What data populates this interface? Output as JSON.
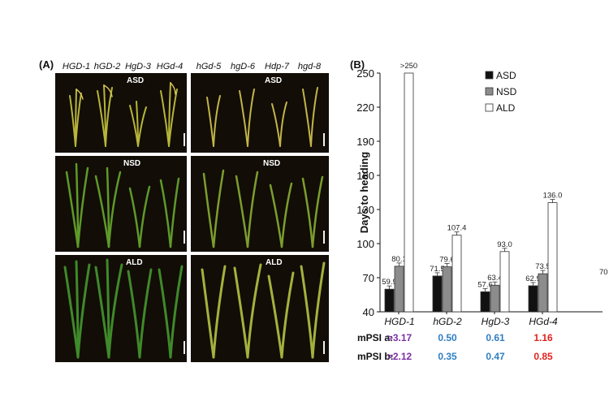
{
  "panel_a": {
    "label": "(A)",
    "genotypes": [
      "HGD-1",
      "hGD-2",
      "HgD-3",
      "HGd-4",
      "hGd-5",
      "hgD-6",
      "Hdp-7",
      "hgd-8"
    ],
    "conditions": [
      "ASD",
      "NSD",
      "ALD"
    ]
  },
  "chart_data": {
    "type": "bar",
    "panel_label": "(B)",
    "ylabel": "Days to heading",
    "ylim": [
      40,
      250
    ],
    "yticks": [
      40,
      70,
      100,
      130,
      160,
      190,
      220,
      250
    ],
    "categories": [
      "HGD-1",
      "hGD-2",
      "HgD-3",
      "HGd-4"
    ],
    "series": [
      {
        "name": "ASD",
        "color": "#111111",
        "values": [
          59.9,
          71.5,
          57.6,
          62.9
        ],
        "labels": [
          "59.9",
          "71.5",
          "57.6",
          "62.9"
        ]
      },
      {
        "name": "NSD",
        "color": "#8c8c8c",
        "values": [
          80.1,
          79.6,
          63.4,
          73.5
        ],
        "labels": [
          "80.1",
          "79.6",
          "63.4",
          "73.5"
        ]
      },
      {
        "name": "ALD",
        "color": "#ffffff",
        "values": [
          250,
          107.4,
          93.0,
          136.0
        ],
        "labels": [
          ">250",
          "107.4",
          "93.0",
          "136.0"
        ]
      }
    ],
    "legend_position": "top-right",
    "cutoff_label": "70",
    "mpsi": [
      {
        "label": "mPSI a:",
        "values": [
          ">3.17",
          "0.50",
          "0.61",
          "1.16"
        ]
      },
      {
        "label": "mPSI b:",
        "values": [
          ">2.12",
          "0.35",
          "0.47",
          "0.85"
        ]
      }
    ],
    "mpsi_colors": [
      "#7b2fa3",
      "#2f7fc1",
      "#2f7fc1",
      "#e0231f"
    ]
  }
}
